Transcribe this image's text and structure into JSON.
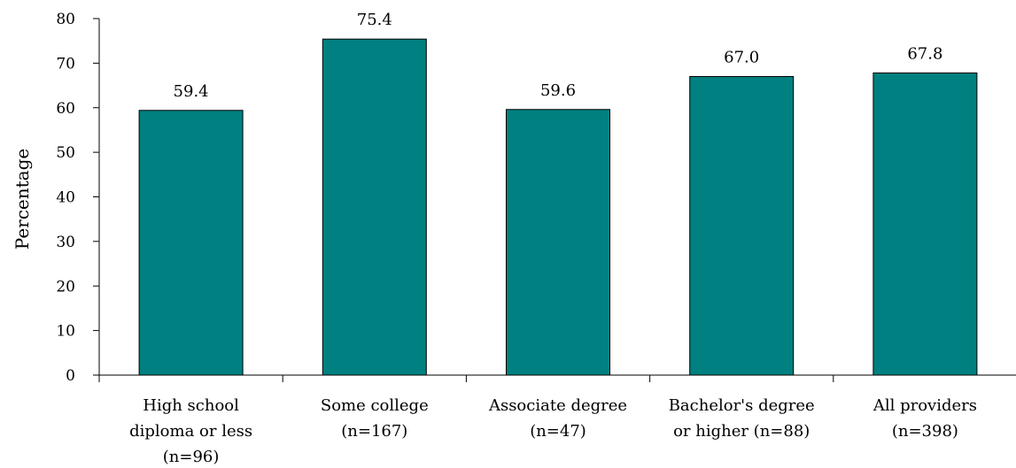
{
  "chart_data": {
    "type": "bar",
    "categories": [
      [
        "High school",
        "diploma or less",
        "(n=96)"
      ],
      [
        "Some college",
        "(n=167)"
      ],
      [
        "Associate degree",
        "(n=47)"
      ],
      [
        "Bachelor's degree",
        "or higher (n=88)"
      ],
      [
        "All providers",
        "(n=398)"
      ]
    ],
    "values": [
      59.4,
      75.4,
      59.6,
      67.0,
      67.8
    ],
    "value_labels": [
      "59.4",
      "75.4",
      "59.6",
      "67.0",
      "67.8"
    ],
    "ylabel": "Percentage",
    "ylim": [
      0,
      80
    ],
    "yticks": [
      "0",
      "10",
      "20",
      "30",
      "40",
      "50",
      "60",
      "70",
      "80"
    ],
    "bar_color": "#008080",
    "grid": false,
    "legend": "none"
  }
}
